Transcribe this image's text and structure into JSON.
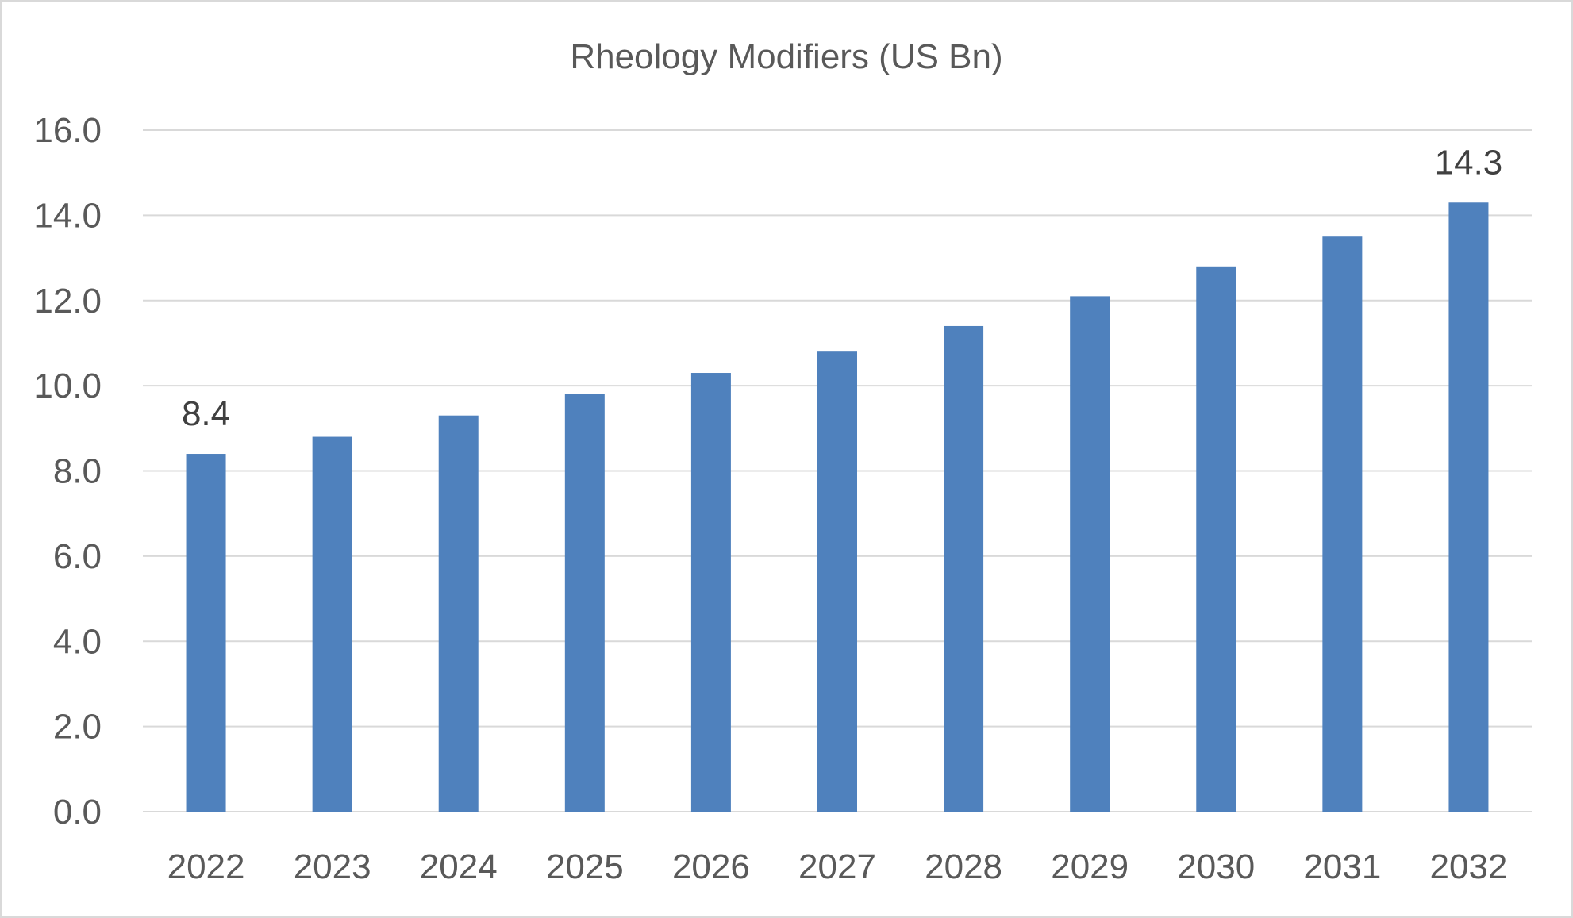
{
  "chart_data": {
    "type": "bar",
    "title": "Rheology Modifiers (US Bn)",
    "xlabel": "",
    "ylabel": "",
    "categories": [
      "2022",
      "2023",
      "2024",
      "2025",
      "2026",
      "2027",
      "2028",
      "2029",
      "2030",
      "2031",
      "2032"
    ],
    "values": [
      8.4,
      8.8,
      9.3,
      9.8,
      10.3,
      10.8,
      11.4,
      12.1,
      12.8,
      13.5,
      14.3
    ],
    "ylim": [
      0,
      16
    ],
    "y_ticks": [
      "0.0",
      "2.0",
      "4.0",
      "6.0",
      "8.0",
      "10.0",
      "12.0",
      "14.0",
      "16.0"
    ],
    "data_labels": [
      {
        "category": "2022",
        "text": "8.4"
      },
      {
        "category": "2032",
        "text": "14.3"
      }
    ],
    "grid": true,
    "legend": "none",
    "colors": {
      "bar": "#4f81bd",
      "grid": "#d9d9d9",
      "axis_text": "#595959",
      "label_text": "#404040"
    }
  }
}
